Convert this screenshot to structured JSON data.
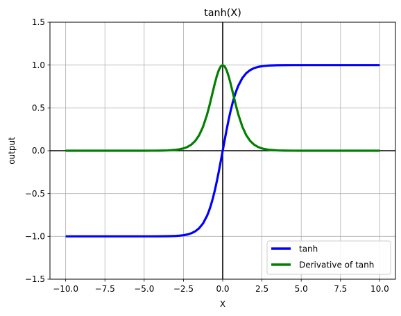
{
  "chart_data": {
    "type": "line",
    "title": "tanh(X)",
    "xlabel": "X",
    "ylabel": "output",
    "xlim": [
      -11.0,
      11.0
    ],
    "ylim": [
      -1.5,
      1.5
    ],
    "grid": true,
    "legend_position": "lower-right",
    "x_ticks": [
      -10.0,
      -7.5,
      -5.0,
      -2.5,
      0.0,
      2.5,
      5.0,
      7.5,
      10.0
    ],
    "x_tick_labels": [
      "−10.0",
      "−7.5",
      "−5.0",
      "−2.5",
      "0.0",
      "2.5",
      "5.0",
      "7.5",
      "10.0"
    ],
    "y_ticks": [
      -1.5,
      -1.0,
      -0.5,
      0.0,
      0.5,
      1.0,
      1.5
    ],
    "y_tick_labels": [
      "−1.5",
      "−1.0",
      "−0.5",
      "0.0",
      "0.5",
      "1.0",
      "1.5"
    ],
    "x": [
      -10,
      -9.5,
      -9,
      -8.5,
      -8,
      -7.5,
      -7,
      -6.5,
      -6,
      -5.5,
      -5,
      -4.5,
      -4,
      -3.5,
      -3,
      -2.75,
      -2.5,
      -2.25,
      -2,
      -1.75,
      -1.5,
      -1.25,
      -1,
      -0.875,
      -0.75,
      -0.625,
      -0.5,
      -0.375,
      -0.25,
      -0.125,
      0,
      0.125,
      0.25,
      0.375,
      0.5,
      0.625,
      0.75,
      0.875,
      1,
      1.25,
      1.5,
      1.75,
      2,
      2.25,
      2.5,
      2.75,
      3,
      3.5,
      4,
      4.5,
      5,
      5.5,
      6,
      6.5,
      7,
      7.5,
      8,
      8.5,
      9,
      9.5,
      10
    ],
    "series": [
      {
        "name": "tanh",
        "color": "#0000ff",
        "values": [
          -1.0,
          -1.0,
          -1.0,
          -1.0,
          -1.0,
          -1.0,
          -1.0,
          -1.0,
          -1.0,
          -1.0,
          -0.9999,
          -0.9998,
          -0.9993,
          -0.9982,
          -0.9951,
          -0.9919,
          -0.9866,
          -0.978,
          -0.964,
          -0.9414,
          -0.9051,
          -0.8483,
          -0.7616,
          -0.7039,
          -0.6351,
          -0.5546,
          -0.4621,
          -0.3584,
          -0.2449,
          -0.1244,
          0.0,
          0.1244,
          0.2449,
          0.3584,
          0.4621,
          0.5546,
          0.6351,
          0.7039,
          0.7616,
          0.8483,
          0.9051,
          0.9414,
          0.964,
          0.978,
          0.9866,
          0.9919,
          0.9951,
          0.9982,
          0.9993,
          0.9998,
          0.9999,
          1.0,
          1.0,
          1.0,
          1.0,
          1.0,
          1.0,
          1.0,
          1.0,
          1.0,
          1.0
        ]
      },
      {
        "name": "Derivative of tanh",
        "color": "#008000",
        "values": [
          0.0,
          0.0,
          0.0,
          0.0,
          0.0,
          0.0,
          0.0,
          0.0,
          0.0,
          0.0001,
          0.0002,
          0.0005,
          0.0013,
          0.0036,
          0.0099,
          0.0163,
          0.0266,
          0.0435,
          0.0707,
          0.1138,
          0.1807,
          0.2805,
          0.42,
          0.5045,
          0.5966,
          0.6924,
          0.7864,
          0.8716,
          0.94,
          0.9845,
          1.0,
          0.9845,
          0.94,
          0.8716,
          0.7864,
          0.6924,
          0.5966,
          0.5045,
          0.42,
          0.2805,
          0.1807,
          0.1138,
          0.0707,
          0.0435,
          0.0266,
          0.0163,
          0.0099,
          0.0036,
          0.0013,
          0.0005,
          0.0002,
          0.0001,
          0.0,
          0.0,
          0.0,
          0.0,
          0.0,
          0.0,
          0.0,
          0.0,
          0.0
        ]
      }
    ]
  },
  "colors": {
    "grid": "#b0b0b0",
    "axes": "#000000",
    "legend_border": "#cccccc"
  }
}
